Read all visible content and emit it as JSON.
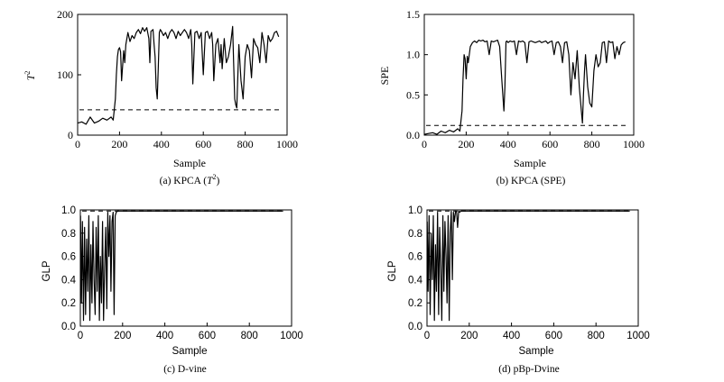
{
  "figure": {
    "captions": [
      "(a) KPCA (T",
      "2",
      ")",
      "(b) KPCA (SPE)",
      "(c) D-vine",
      "(d) pBp-Dvine"
    ]
  },
  "chart_data": [
    {
      "type": "line",
      "panel": "a",
      "caption_prefix": "(a) KPCA (",
      "caption_var": "T",
      "caption_sup": "2",
      "caption_suffix": ")",
      "xlabel": "Sample",
      "ylabel": "T",
      "ylabel_sup": "2",
      "xlim": [
        0,
        1000
      ],
      "ylim": [
        0,
        200
      ],
      "xticks": [
        0,
        200,
        400,
        600,
        800,
        1000
      ],
      "yticks": [
        0,
        100,
        200
      ],
      "xtick_labels": [
        "0",
        "200",
        "400",
        "600",
        "800",
        "1000"
      ],
      "ytick_labels": [
        "0",
        "100",
        "200"
      ],
      "threshold": 42,
      "series": [
        {
          "x": [
            1,
            20,
            40,
            60,
            80,
            100,
            120,
            140,
            160,
            170,
            180,
            185,
            190,
            195,
            200,
            205,
            210,
            220,
            225,
            230,
            240,
            250,
            260,
            270,
            280,
            290,
            300,
            310,
            320,
            330,
            340,
            345,
            350,
            360,
            365,
            370,
            375,
            380,
            385,
            390,
            395,
            400,
            410,
            420,
            430,
            440,
            450,
            460,
            470,
            480,
            490,
            500,
            510,
            520,
            530,
            540,
            545,
            550,
            560,
            570,
            580,
            590,
            600,
            610,
            620,
            630,
            640,
            645,
            650,
            660,
            670,
            680,
            685,
            690,
            700,
            710,
            720,
            730,
            740,
            745,
            750,
            755,
            760,
            765,
            770,
            780,
            790,
            800,
            810,
            820,
            830,
            840,
            850,
            860,
            870,
            880,
            890,
            900,
            910,
            920,
            930,
            940,
            950,
            960
          ],
          "y": [
            20,
            22,
            18,
            30,
            20,
            23,
            28,
            25,
            30,
            25,
            60,
            100,
            130,
            142,
            145,
            138,
            90,
            140,
            120,
            150,
            170,
            155,
            165,
            160,
            170,
            175,
            168,
            178,
            172,
            178,
            160,
            120,
            172,
            175,
            150,
            130,
            78,
            60,
            110,
            170,
            175,
            172,
            165,
            170,
            160,
            170,
            175,
            170,
            160,
            172,
            165,
            170,
            175,
            170,
            160,
            175,
            150,
            85,
            170,
            172,
            160,
            170,
            100,
            170,
            172,
            160,
            170,
            150,
            90,
            150,
            160,
            120,
            150,
            110,
            160,
            120,
            130,
            150,
            180,
            120,
            60,
            50,
            45,
            100,
            150,
            90,
            60,
            130,
            150,
            140,
            95,
            160,
            150,
            145,
            120,
            170,
            150,
            120,
            165,
            155,
            160,
            170,
            172,
            163
          ]
        }
      ]
    },
    {
      "type": "line",
      "panel": "b",
      "caption": "(b) KPCA (SPE)",
      "xlabel": "Sample",
      "ylabel": "SPE",
      "xlim": [
        0,
        1000
      ],
      "ylim": [
        0,
        1.5
      ],
      "xticks": [
        0,
        200,
        400,
        600,
        800,
        1000
      ],
      "yticks": [
        0,
        0.5,
        1.0,
        1.5
      ],
      "xtick_labels": [
        "0",
        "200",
        "400",
        "600",
        "800",
        "1000"
      ],
      "ytick_labels": [
        "0.0",
        "0.5",
        "1.0",
        "1.5"
      ],
      "threshold": 0.12,
      "series": [
        {
          "x": [
            1,
            20,
            40,
            60,
            80,
            100,
            120,
            140,
            160,
            170,
            180,
            185,
            190,
            195,
            200,
            205,
            210,
            220,
            230,
            240,
            250,
            260,
            270,
            280,
            290,
            300,
            310,
            320,
            330,
            340,
            350,
            360,
            370,
            380,
            385,
            390,
            395,
            400,
            410,
            420,
            430,
            440,
            450,
            460,
            470,
            480,
            490,
            500,
            510,
            520,
            530,
            540,
            550,
            560,
            570,
            580,
            590,
            600,
            610,
            620,
            630,
            640,
            650,
            660,
            670,
            680,
            690,
            700,
            710,
            720,
            730,
            740,
            750,
            755,
            760,
            765,
            770,
            780,
            790,
            800,
            810,
            820,
            830,
            840,
            850,
            860,
            870,
            880,
            890,
            900,
            910,
            920,
            930,
            940,
            950,
            960
          ],
          "y": [
            0.01,
            0.02,
            0.03,
            0.01,
            0.05,
            0.03,
            0.06,
            0.04,
            0.08,
            0.05,
            0.3,
            0.7,
            1.0,
            0.95,
            0.7,
            0.98,
            0.9,
            1.1,
            1.15,
            1.17,
            1.15,
            1.18,
            1.17,
            1.18,
            1.16,
            1.17,
            1.0,
            1.17,
            1.16,
            1.17,
            1.18,
            1.1,
            0.7,
            0.3,
            0.6,
            1.16,
            1.17,
            1.15,
            1.17,
            1.16,
            1.17,
            1.0,
            1.17,
            1.16,
            1.17,
            1.15,
            0.9,
            1.16,
            1.17,
            1.16,
            1.15,
            1.16,
            1.17,
            1.15,
            1.16,
            1.17,
            1.14,
            1.16,
            1.17,
            1.0,
            1.15,
            1.16,
            1.1,
            0.9,
            1.15,
            1.16,
            1.0,
            0.5,
            0.9,
            0.7,
            1.05,
            0.6,
            0.3,
            0.15,
            0.5,
            0.8,
            1.0,
            0.6,
            0.4,
            0.35,
            0.8,
            1.0,
            0.85,
            0.9,
            1.15,
            1.16,
            0.9,
            1.17,
            1.15,
            1.16,
            0.95,
            1.1,
            1.0,
            1.12,
            1.15,
            1.16
          ]
        }
      ]
    },
    {
      "type": "line",
      "panel": "c",
      "caption": "(c) D-vine",
      "xlabel": "Sample",
      "ylabel": "GLP",
      "xlim": [
        0,
        1000
      ],
      "ylim": [
        0,
        1.0
      ],
      "xticks": [
        0,
        200,
        400,
        600,
        800,
        1000
      ],
      "yticks": [
        0,
        0.2,
        0.4,
        0.6,
        0.8,
        1.0
      ],
      "xtick_labels": [
        "0",
        "200",
        "400",
        "600",
        "800",
        "1000"
      ],
      "ytick_labels": [
        "0.0",
        "0.2",
        "0.4",
        "0.6",
        "0.8",
        "1.0"
      ],
      "threshold": 0.99,
      "series": [
        {
          "x": [
            1,
            5,
            10,
            15,
            20,
            25,
            30,
            35,
            40,
            45,
            50,
            55,
            60,
            65,
            70,
            75,
            80,
            85,
            90,
            95,
            100,
            105,
            110,
            115,
            120,
            125,
            130,
            135,
            140,
            145,
            150,
            155,
            160,
            165,
            170,
            175,
            180,
            190,
            200,
            300,
            400,
            500,
            600,
            700,
            800,
            900,
            960
          ],
          "y": [
            0.95,
            0.2,
            0.9,
            0.05,
            0.85,
            0.1,
            0.75,
            0.3,
            0.95,
            0.05,
            0.7,
            0.2,
            0.9,
            0.4,
            0.1,
            0.85,
            0.3,
            0.95,
            0.05,
            0.6,
            0.2,
            0.9,
            0.05,
            0.5,
            0.85,
            0.15,
            0.98,
            0.6,
            0.95,
            0.3,
            0.9,
            0.98,
            0.1,
            0.95,
            0.98,
            0.99,
            0.99,
            0.99,
            0.99,
            0.99,
            0.99,
            0.99,
            0.99,
            0.99,
            0.99,
            0.99,
            0.99
          ]
        }
      ]
    },
    {
      "type": "line",
      "panel": "d",
      "caption": "(d) pBp-Dvine",
      "xlabel": "Sample",
      "ylabel": "GLP",
      "xlim": [
        0,
        1000
      ],
      "ylim": [
        0,
        1.0
      ],
      "xticks": [
        0,
        200,
        400,
        600,
        800,
        1000
      ],
      "yticks": [
        0,
        0.2,
        0.4,
        0.6,
        0.8,
        1.0
      ],
      "xtick_labels": [
        "0",
        "200",
        "400",
        "600",
        "800",
        "1000"
      ],
      "ytick_labels": [
        "0.0",
        "0.2",
        "0.4",
        "0.6",
        "0.8",
        "1.0"
      ],
      "threshold": 0.99,
      "series": [
        {
          "x": [
            1,
            5,
            10,
            15,
            20,
            25,
            30,
            35,
            40,
            45,
            50,
            55,
            60,
            65,
            70,
            75,
            80,
            85,
            90,
            95,
            100,
            105,
            110,
            115,
            120,
            125,
            130,
            135,
            140,
            145,
            150,
            155,
            160,
            170,
            180,
            190,
            200,
            300,
            400,
            500,
            600,
            700,
            800,
            900,
            960
          ],
          "y": [
            0.9,
            0.3,
            0.95,
            0.1,
            0.8,
            0.4,
            0.95,
            0.05,
            0.7,
            0.3,
            0.98,
            0.1,
            0.85,
            0.5,
            0.05,
            0.95,
            0.3,
            0.9,
            0.6,
            0.2,
            0.95,
            0.05,
            0.8,
            0.99,
            0.4,
            0.98,
            0.9,
            0.99,
            0.98,
            0.85,
            0.99,
            0.98,
            0.99,
            0.99,
            0.99,
            0.99,
            0.99,
            0.99,
            0.99,
            0.99,
            0.99,
            0.99,
            0.99,
            0.99,
            0.99
          ]
        }
      ]
    }
  ]
}
